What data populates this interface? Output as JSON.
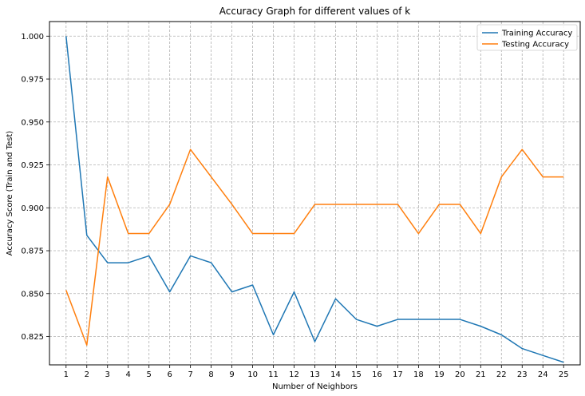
{
  "chart_data": {
    "type": "line",
    "title": "Accuracy Graph for different values of k",
    "xlabel": "Number of Neighbors",
    "ylabel": "Accuracy Score (Train and Test)",
    "x": [
      1,
      2,
      3,
      4,
      5,
      6,
      7,
      8,
      9,
      10,
      11,
      12,
      13,
      14,
      15,
      16,
      17,
      18,
      19,
      20,
      21,
      22,
      23,
      24,
      25
    ],
    "xlim": [
      0.2,
      25.8
    ],
    "ylim": [
      0.8085,
      1.0085
    ],
    "yticks": [
      0.825,
      0.85,
      0.875,
      0.9,
      0.925,
      0.95,
      0.975,
      1.0
    ],
    "ytick_labels": [
      "0.825",
      "0.850",
      "0.875",
      "0.900",
      "0.925",
      "0.950",
      "0.975",
      "1.000"
    ],
    "grid": true,
    "legend_position": "top-right",
    "series": [
      {
        "name": "Training Accuracy",
        "color": "#1f77b4",
        "values": [
          1.0,
          0.884,
          0.868,
          0.868,
          0.872,
          0.851,
          0.872,
          0.868,
          0.851,
          0.855,
          0.826,
          0.851,
          0.822,
          0.847,
          0.835,
          0.831,
          0.835,
          0.835,
          0.835,
          0.835,
          0.831,
          0.826,
          0.818,
          0.814,
          0.81
        ]
      },
      {
        "name": "Testing Accuracy",
        "color": "#ff7f0e",
        "values": [
          0.852,
          0.82,
          0.918,
          0.885,
          0.885,
          0.902,
          0.934,
          0.918,
          0.902,
          0.885,
          0.885,
          0.885,
          0.902,
          0.902,
          0.902,
          0.902,
          0.902,
          0.885,
          0.902,
          0.902,
          0.885,
          0.918,
          0.934,
          0.918,
          0.918
        ]
      }
    ]
  }
}
